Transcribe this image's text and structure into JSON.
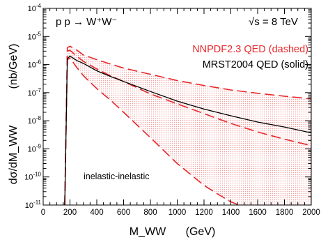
{
  "chart_data": {
    "type": "line",
    "process": "p p → W⁺W⁻",
    "energy": "√s = 8 TeV",
    "annotation": "inelastic-inelastic",
    "xlabel": "M_WW",
    "xlabel_unit": "(GeV)",
    "ylabel": "dσ/dM_WW",
    "ylabel_unit": "(nb/GeV)",
    "xlim": [
      0,
      2000
    ],
    "ylim": [
      1e-11,
      0.0001
    ],
    "y_scale": "log",
    "x_ticks": [
      0,
      200,
      400,
      600,
      800,
      1000,
      1200,
      1400,
      1600,
      1800,
      2000
    ],
    "y_tick_exponents": [
      -11,
      -10,
      -9,
      -8,
      -7,
      -6,
      -5,
      -4
    ],
    "y_tick_base": "10",
    "legend_position": "top-right",
    "colors": {
      "nnpdf": "#e8282b",
      "band_fill": "#f8c4c4",
      "mrst": "#000000"
    },
    "series": [
      {
        "name": "NNPDF2.3 QED (dashed)",
        "style": "dashed",
        "role": "central",
        "x": [
          161,
          180,
          200,
          250,
          300,
          400,
          500,
          600,
          800,
          1000,
          1200,
          1400,
          1600,
          1800,
          2000
        ],
        "y": [
          1e-11,
          3e-06,
          3.2e-06,
          2e-06,
          1.3e-06,
          7e-07,
          4e-07,
          2.5e-07,
          9e-08,
          4e-08,
          1.8e-08,
          8e-09,
          4e-09,
          2.2e-09,
          1.3e-09
        ]
      },
      {
        "name": "NNPDF2.3 QED upper",
        "style": "dashed",
        "role": "band-upper",
        "x": [
          161,
          180,
          200,
          250,
          300,
          400,
          500,
          600,
          800,
          1000,
          1200,
          1400,
          1600,
          1800,
          2000
        ],
        "y": [
          1e-11,
          4e-06,
          4.5e-06,
          3.3e-06,
          2.2e-06,
          1.5e-06,
          1.05e-06,
          7.5e-07,
          4.5e-07,
          2.7e-07,
          1.8e-07,
          1.25e-07,
          9.5e-08,
          7.5e-08,
          6e-08
        ]
      },
      {
        "name": "NNPDF2.3 QED lower",
        "style": "dashed",
        "role": "band-lower",
        "x": [
          161,
          180,
          200,
          250,
          300,
          400,
          500,
          600,
          800,
          1000,
          1200,
          1300,
          1400,
          1460
        ],
        "y": [
          1e-11,
          1.5e-06,
          1.7e-06,
          8e-07,
          4e-07,
          1.4e-07,
          5.5e-08,
          2e-08,
          2.5e-09,
          3e-10,
          5e-11,
          2.5e-11,
          1.3e-11,
          1e-11
        ]
      },
      {
        "name": "MRST2004 QED (solid)",
        "style": "solid",
        "role": "central",
        "x": [
          161,
          180,
          200,
          250,
          300,
          400,
          500,
          600,
          800,
          1000,
          1200,
          1400,
          1600,
          1800,
          2000
        ],
        "y": [
          1e-11,
          1.6e-06,
          2e-06,
          1.4e-06,
          1.1e-06,
          6e-07,
          3.8e-07,
          2.5e-07,
          1.1e-07,
          5e-08,
          2.6e-08,
          1.5e-08,
          9e-09,
          6e-09,
          3.7e-09
        ]
      }
    ]
  }
}
